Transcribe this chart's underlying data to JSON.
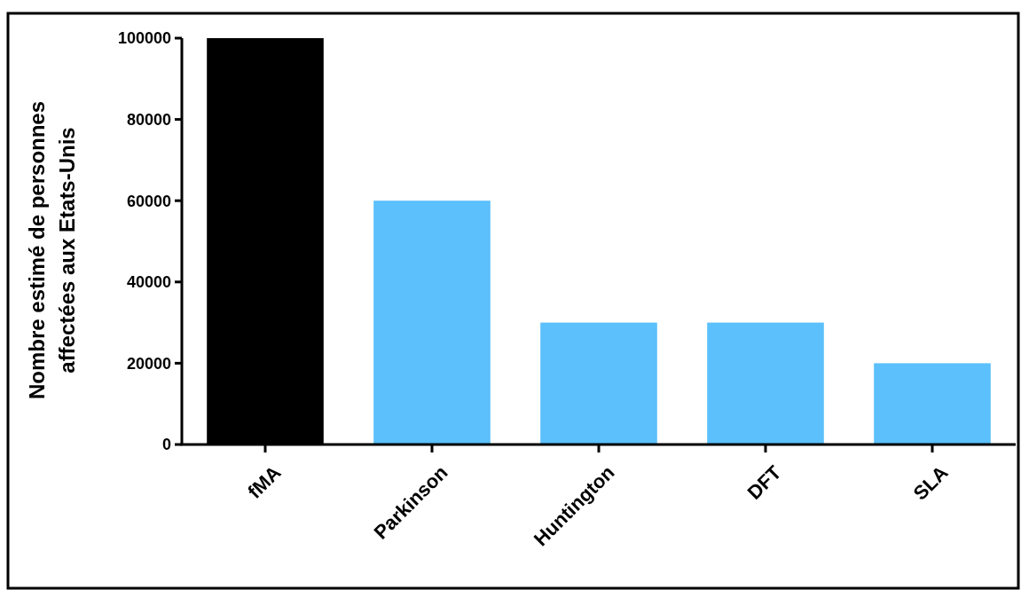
{
  "chart_data": {
    "type": "bar",
    "ylabel": "Nombre estimé de personnes\naffectées aux Etats-Unis",
    "categories": [
      "fMA",
      "Parkinson",
      "Huntington",
      "DFT",
      "SLA"
    ],
    "values": [
      100000,
      60000,
      30000,
      30000,
      20000
    ],
    "colors": [
      "#000000",
      "#5bc0fb",
      "#5bc0fb",
      "#5bc0fb",
      "#5bc0fb"
    ],
    "ylim": [
      0,
      100000
    ],
    "yticks": [
      0,
      20000,
      40000,
      60000,
      80000,
      100000
    ],
    "grid": false
  }
}
